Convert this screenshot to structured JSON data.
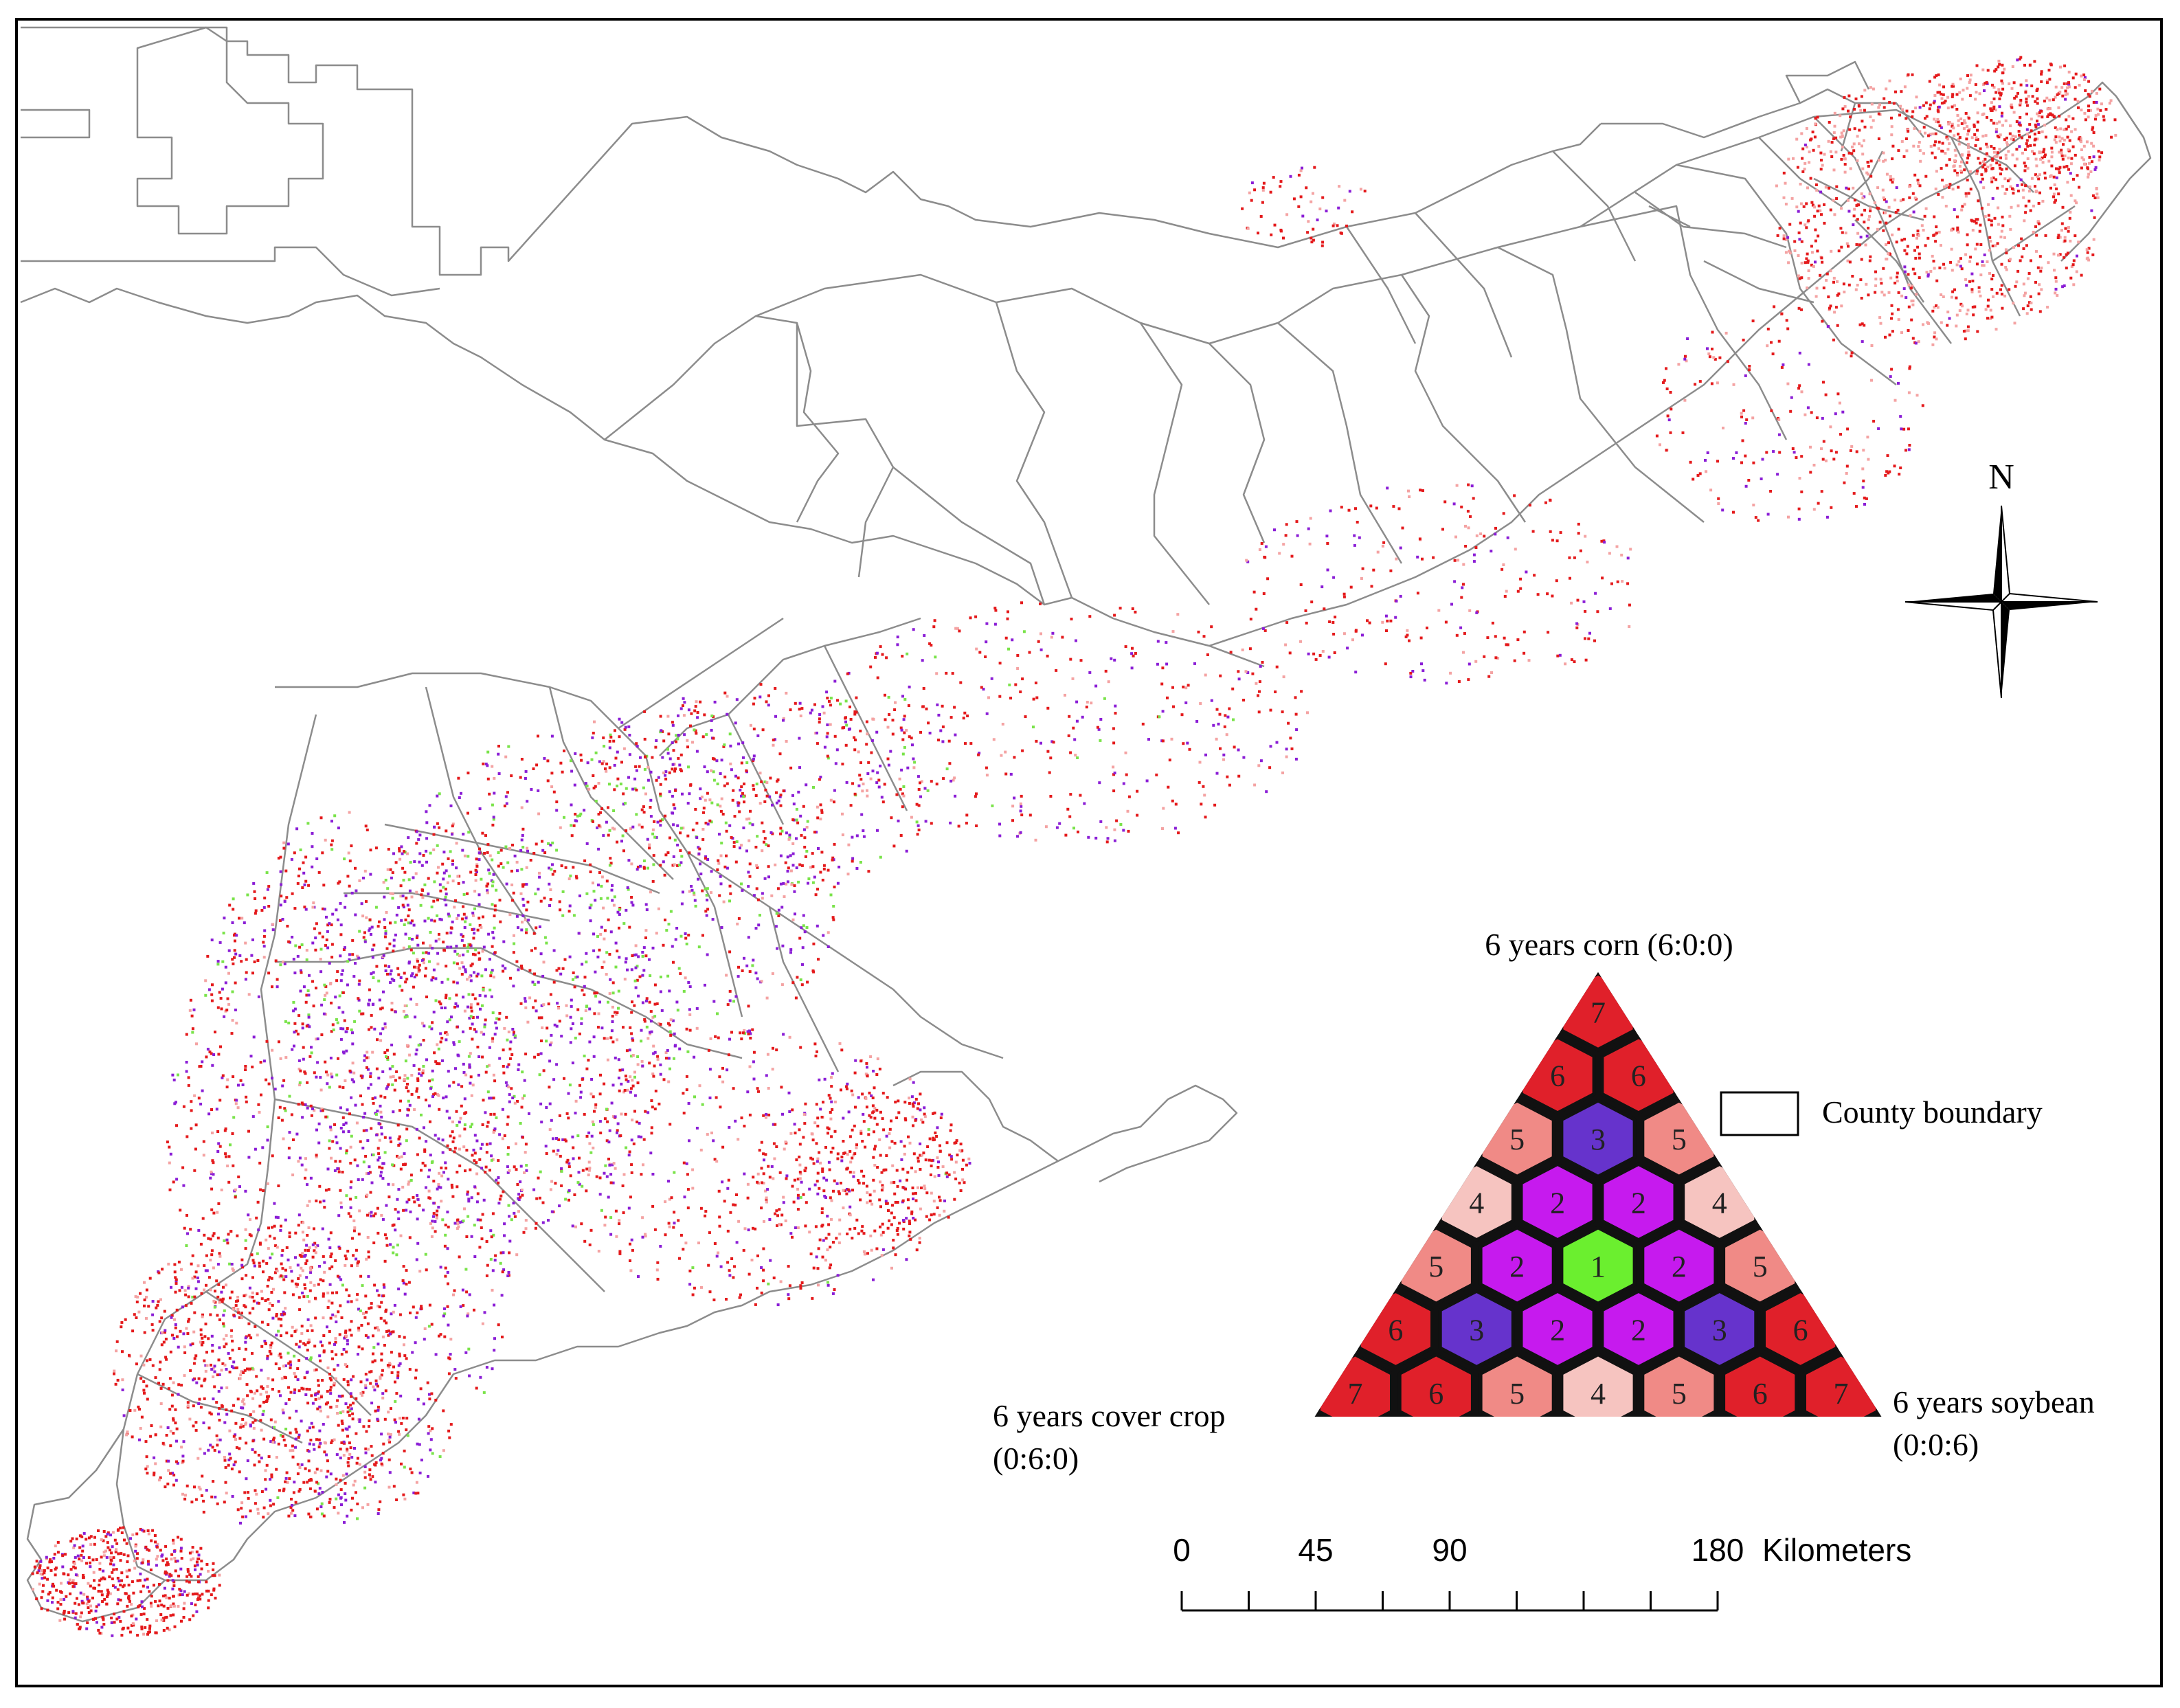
{
  "north_arrow": {
    "label": "N"
  },
  "legend": {
    "county_boundary_label": "County boundary"
  },
  "ternary_legend": {
    "top_label": "6 years corn (6:0:0)",
    "left_label_line1": "6 years cover crop",
    "left_label_line2": "(0:6:0)",
    "right_label_line1": "6 years soybean",
    "right_label_line2": "(0:0:6)",
    "class_colors": {
      "1": "#6bef2f",
      "2": "#c61aee",
      "3": "#6633cc",
      "4": "#f6c4c0",
      "5": "#f08a86",
      "6": "#e0202a",
      "7": "#e0202a"
    },
    "rows": [
      [
        "7"
      ],
      [
        "6",
        "6"
      ],
      [
        "5",
        "3",
        "5"
      ],
      [
        "4",
        "2",
        "2",
        "4"
      ],
      [
        "5",
        "2",
        "1",
        "2",
        "5"
      ],
      [
        "6",
        "3",
        "2",
        "2",
        "3",
        "6"
      ],
      [
        "7",
        "6",
        "5",
        "4",
        "5",
        "6",
        "7"
      ]
    ]
  },
  "scale_bar": {
    "ticks": [
      "0",
      "45",
      "90",
      "180"
    ],
    "unit": "Kilometers"
  },
  "colors": {
    "red": "#e41a1c",
    "pink": "#f4a3a3",
    "purple": "#8b1ed6",
    "green": "#7ae34a",
    "boundary": "#8c8c8c"
  }
}
